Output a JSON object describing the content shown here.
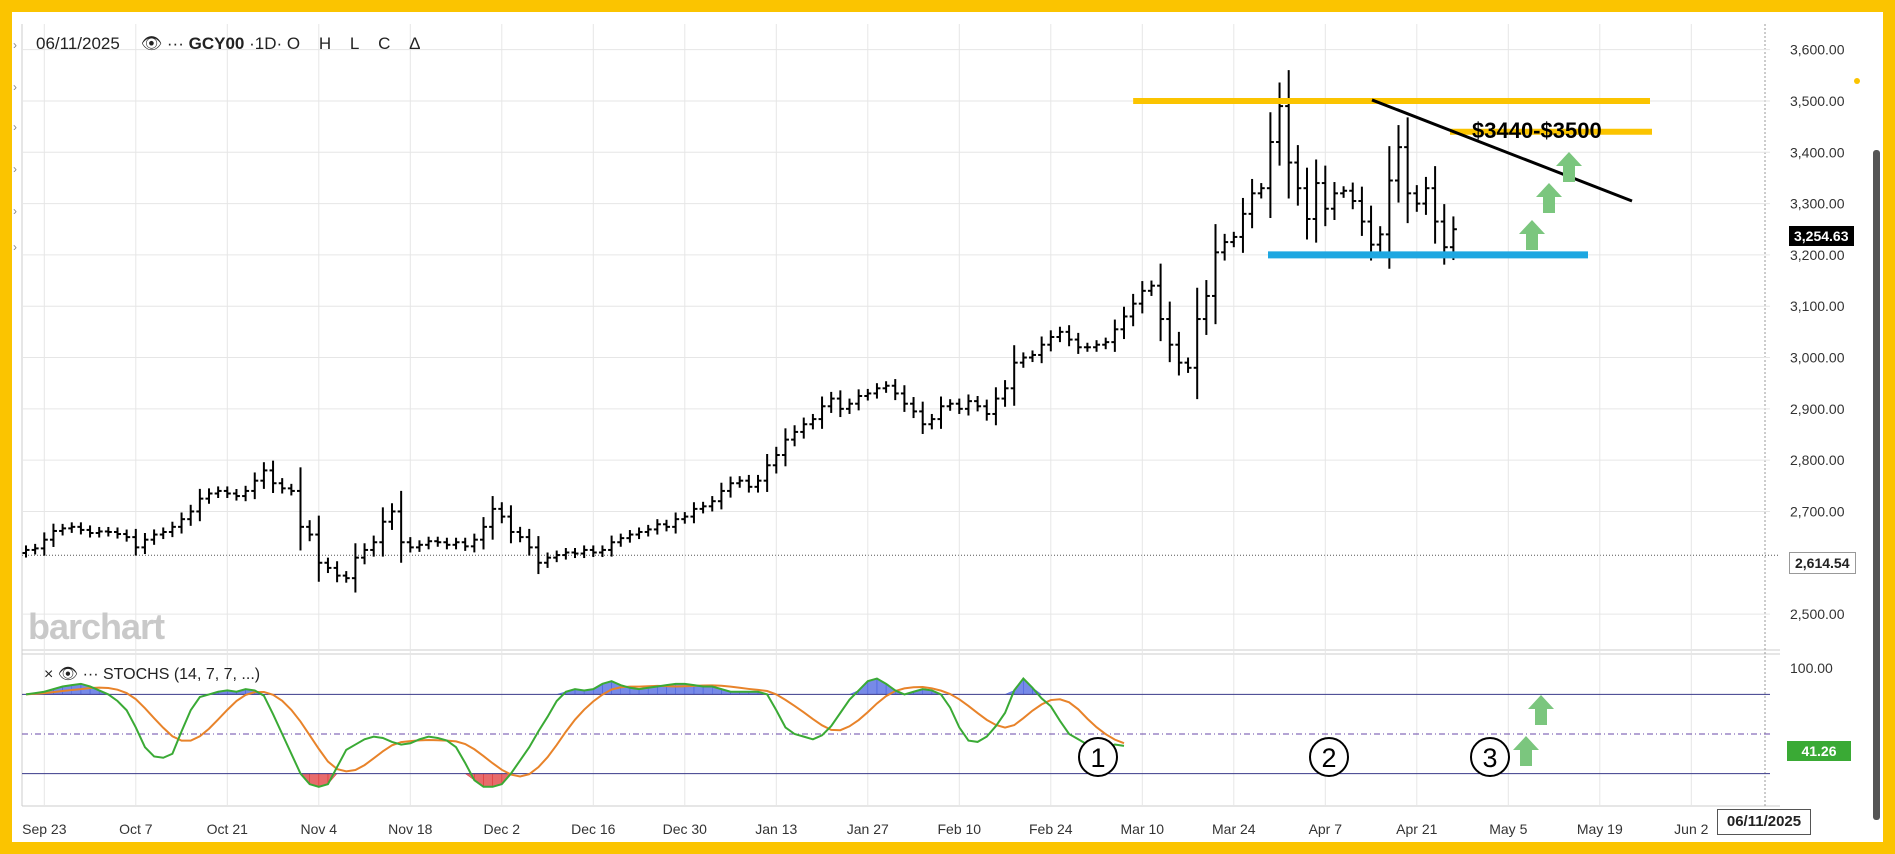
{
  "header": {
    "date": "06/11/2025",
    "eye_icon": "eye-icon",
    "dots": "···",
    "symbol": "GCY00",
    "interval": "·1D·",
    "ohlc": [
      "O",
      "H",
      "L",
      "C",
      "Δ"
    ]
  },
  "watermark": "barchart",
  "current_price": "3,254.63",
  "reference_price": "2,614.54",
  "date_box": "06/11/2025",
  "annotation": "$3440-$3500",
  "stoch_header": {
    "close_icon": "×",
    "eye_icon": "eye-icon",
    "dots": "···",
    "label": "STOCHS (14, 7, 7, ...)"
  },
  "stoch_current": "41.26",
  "stoch_markers": [
    "1",
    "2",
    "3"
  ],
  "colors": {
    "border": "#fbc400",
    "resistance": "#fbc400",
    "support": "#1ea7e1",
    "trendline": "#000000",
    "arrow": "#7bc67e",
    "stoch_k": "#3aaa35",
    "stoch_d": "#e8832a",
    "overbought_fill": "#4a63e0",
    "oversold_fill": "#e03a3a",
    "stoch_badge": "#3aaa35"
  },
  "chart_data": {
    "type": "ohlc",
    "symbol": "GCY00",
    "ylim": [
      2430,
      3650
    ],
    "yticks": [
      "3,600.00",
      "3,500.00",
      "3,400.00",
      "3,300.00",
      "3,200.00",
      "3,100.00",
      "3,000.00",
      "2,900.00",
      "2,800.00",
      "2,700.00",
      "2,500.00"
    ],
    "ytick_values": [
      3600,
      3500,
      3400,
      3300,
      3200,
      3100,
      3000,
      2900,
      2800,
      2700,
      2500
    ],
    "xticks": [
      "Sep 23",
      "Oct 7",
      "Oct 21",
      "Nov 4",
      "Nov 18",
      "Dec 2",
      "Dec 16",
      "Dec 30",
      "Jan 13",
      "Jan 27",
      "Feb 10",
      "Feb 24",
      "Mar 10",
      "Mar 24",
      "Apr 7",
      "Apr 21",
      "May 5",
      "May 19",
      "Jun 2"
    ],
    "closes": [
      2625,
      2628,
      2645,
      2662,
      2667,
      2670,
      2664,
      2658,
      2661,
      2660,
      2656,
      2650,
      2630,
      2645,
      2655,
      2660,
      2670,
      2685,
      2700,
      2725,
      2735,
      2740,
      2735,
      2730,
      2740,
      2760,
      2780,
      2755,
      2745,
      2740,
      2670,
      2655,
      2600,
      2590,
      2575,
      2570,
      2610,
      2625,
      2640,
      2680,
      2700,
      2640,
      2630,
      2635,
      2642,
      2640,
      2635,
      2640,
      2632,
      2645,
      2670,
      2705,
      2690,
      2660,
      2650,
      2630,
      2600,
      2610,
      2615,
      2620,
      2618,
      2625,
      2620,
      2625,
      2640,
      2648,
      2655,
      2660,
      2665,
      2675,
      2670,
      2685,
      2690,
      2705,
      2710,
      2720,
      2740,
      2755,
      2760,
      2748,
      2760,
      2790,
      2810,
      2840,
      2855,
      2870,
      2880,
      2905,
      2920,
      2900,
      2910,
      2925,
      2930,
      2940,
      2945,
      2930,
      2910,
      2895,
      2870,
      2880,
      2905,
      2910,
      2900,
      2915,
      2905,
      2890,
      2920,
      2940,
      2990,
      3000,
      3005,
      3025,
      3040,
      3050,
      3035,
      3020,
      3020,
      3025,
      3030,
      3055,
      3080,
      3105,
      3130,
      3140,
      3075,
      3025,
      2990,
      2980,
      3075,
      3120,
      3205,
      3225,
      3235,
      3280,
      3320,
      3330,
      3420,
      3490,
      3380,
      3330,
      3270,
      3340,
      3290,
      3320,
      3325,
      3305,
      3265,
      3220,
      3240,
      3345,
      3410,
      3320,
      3300,
      3330,
      3265,
      3215,
      3250
    ],
    "stoch_ylim": [
      0,
      100
    ],
    "stoch_yticks": [
      "100.00"
    ],
    "stoch_lines": [
      80,
      50,
      20
    ],
    "stoch_k": [
      80,
      81,
      82,
      84,
      86,
      87,
      88,
      86,
      83,
      80,
      75,
      68,
      55,
      40,
      33,
      32,
      35,
      52,
      68,
      78,
      80,
      82,
      83,
      82,
      84,
      83,
      79,
      65,
      50,
      35,
      20,
      12,
      10,
      12,
      25,
      38,
      42,
      46,
      48,
      47,
      44,
      42,
      43,
      46,
      48,
      47,
      45,
      40,
      28,
      15,
      10,
      10,
      12,
      20,
      30,
      40,
      52,
      63,
      75,
      82,
      84,
      83,
      84,
      88,
      90,
      87,
      85,
      84,
      85,
      86,
      87,
      88,
      88,
      87,
      86,
      86,
      84,
      82,
      82,
      82,
      82,
      80,
      68,
      55,
      50,
      48,
      46,
      49,
      56,
      66,
      76,
      83,
      90,
      92,
      88,
      83,
      80,
      82,
      84,
      83,
      80,
      70,
      55,
      45,
      44,
      48,
      56,
      66,
      83,
      92,
      85,
      77,
      71,
      60,
      50,
      46,
      42,
      40,
      40,
      42,
      41
    ]
  }
}
